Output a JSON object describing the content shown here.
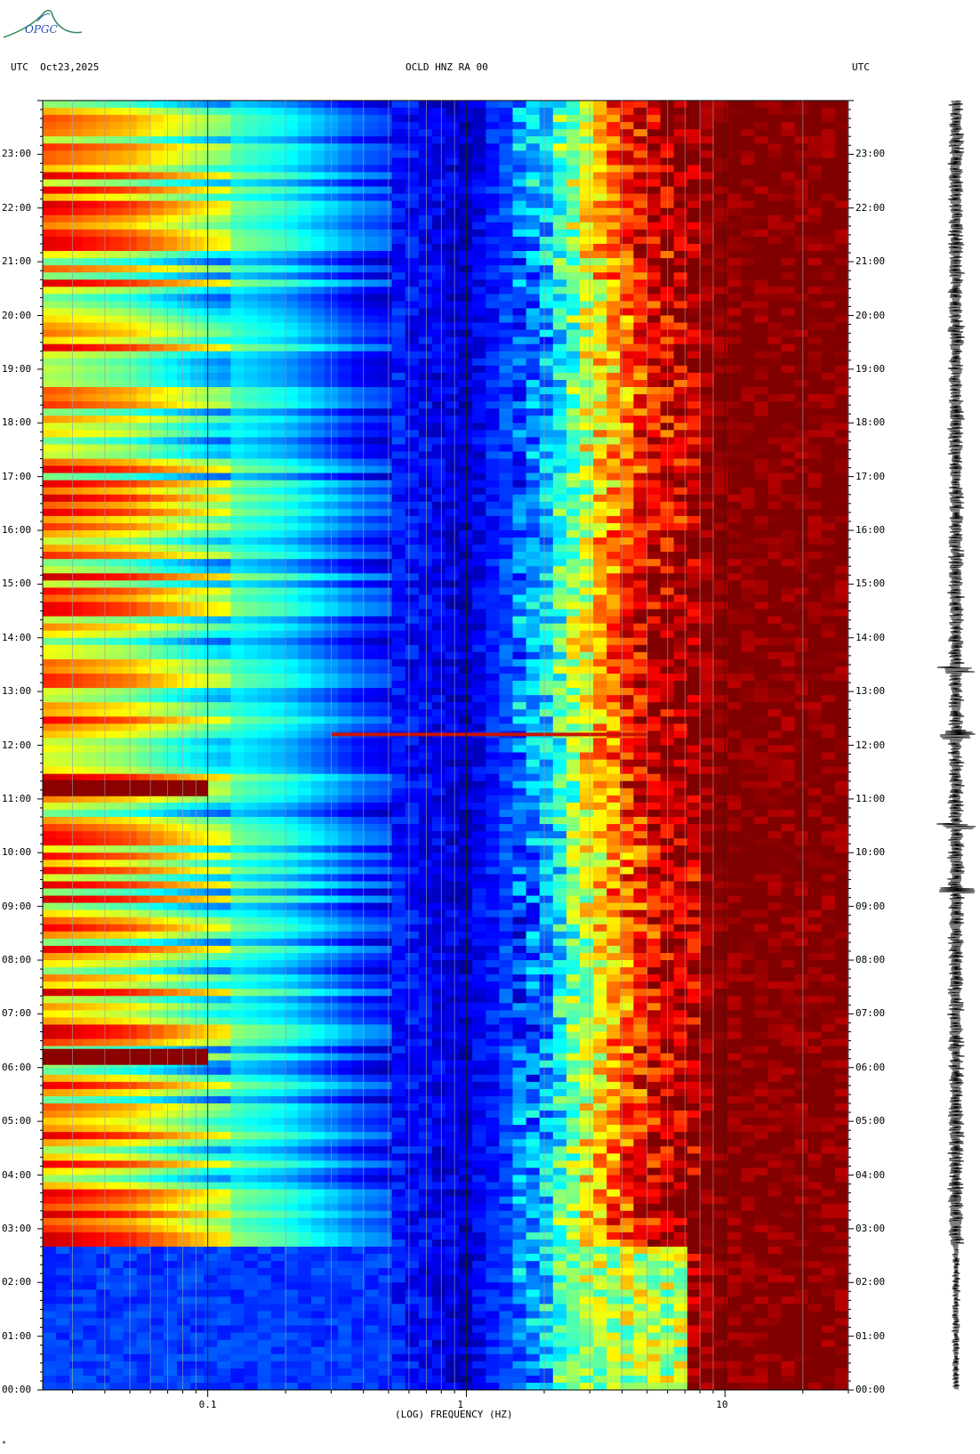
{
  "header": {
    "left": "UTC  Oct23,2025",
    "title": "OCLD HNZ RA 00",
    "right": "UTC"
  },
  "logo": {
    "text": "OPGC",
    "icon": "opgc-logo"
  },
  "footer_mark": "*",
  "colors": {
    "background": "#ffffff",
    "low_power": "#1428c8",
    "high_power": "#8b0000",
    "axis": "#000000",
    "gridline": "#a0a0a0"
  },
  "chart_data": {
    "type": "heatmap",
    "title": "OCLD HNZ RA 00",
    "xlabel": "(LOG) FREQUENCY (HZ)",
    "ylabel": "",
    "x_scale": "log",
    "xlim": [
      0.023,
      30
    ],
    "x_ticks": [
      {
        "value": 0.1,
        "label": "0.1"
      },
      {
        "value": 1,
        "label": "1"
      },
      {
        "value": 10,
        "label": "10"
      }
    ],
    "y_unit": "hours UTC",
    "ylim": [
      0,
      24
    ],
    "y_ticks": [
      {
        "value": 0,
        "label": "00:00"
      },
      {
        "value": 1,
        "label": "01:00"
      },
      {
        "value": 2,
        "label": "02:00"
      },
      {
        "value": 3,
        "label": "03:00"
      },
      {
        "value": 4,
        "label": "04:00"
      },
      {
        "value": 5,
        "label": "05:00"
      },
      {
        "value": 6,
        "label": "06:00"
      },
      {
        "value": 7,
        "label": "07:00"
      },
      {
        "value": 8,
        "label": "08:00"
      },
      {
        "value": 9,
        "label": "09:00"
      },
      {
        "value": 10,
        "label": "10:00"
      },
      {
        "value": 11,
        "label": "11:00"
      },
      {
        "value": 12,
        "label": "12:00"
      },
      {
        "value": 13,
        "label": "13:00"
      },
      {
        "value": 14,
        "label": "14:00"
      },
      {
        "value": 15,
        "label": "15:00"
      },
      {
        "value": 16,
        "label": "16:00"
      },
      {
        "value": 17,
        "label": "17:00"
      },
      {
        "value": 18,
        "label": "18:00"
      },
      {
        "value": 19,
        "label": "19:00"
      },
      {
        "value": 20,
        "label": "20:00"
      },
      {
        "value": 21,
        "label": "21:00"
      },
      {
        "value": 22,
        "label": "22:00"
      },
      {
        "value": 23,
        "label": "23:00"
      }
    ],
    "grid": true,
    "colormap": "jet",
    "spectrum_profile": [
      {
        "freq": 0.025,
        "level": 0.7
      },
      {
        "freq": 0.05,
        "level": 0.62
      },
      {
        "freq": 0.1,
        "level": 0.45
      },
      {
        "freq": 0.2,
        "level": 0.35
      },
      {
        "freq": 0.4,
        "level": 0.18
      },
      {
        "freq": 1,
        "level": 0.08
      },
      {
        "freq": 2,
        "level": 0.3
      },
      {
        "freq": 3,
        "level": 0.62
      },
      {
        "freq": 5,
        "level": 0.9
      },
      {
        "freq": 10,
        "level": 1.0
      },
      {
        "freq": 30,
        "level": 1.0
      }
    ],
    "quiet_period_hours": [
      0,
      2.7
    ],
    "events": [
      {
        "time_h": 12.2,
        "freq_from": 0.3,
        "freq_to": 5,
        "note": "narrow broadband line"
      },
      {
        "time_h": 11.2,
        "freq_from": 0.023,
        "freq_to": 0.1,
        "note": "strong low-frequency energy"
      },
      {
        "time_h": 6.2,
        "freq_from": 0.023,
        "freq_to": 0.1,
        "note": "strong low-frequency energy"
      }
    ]
  }
}
